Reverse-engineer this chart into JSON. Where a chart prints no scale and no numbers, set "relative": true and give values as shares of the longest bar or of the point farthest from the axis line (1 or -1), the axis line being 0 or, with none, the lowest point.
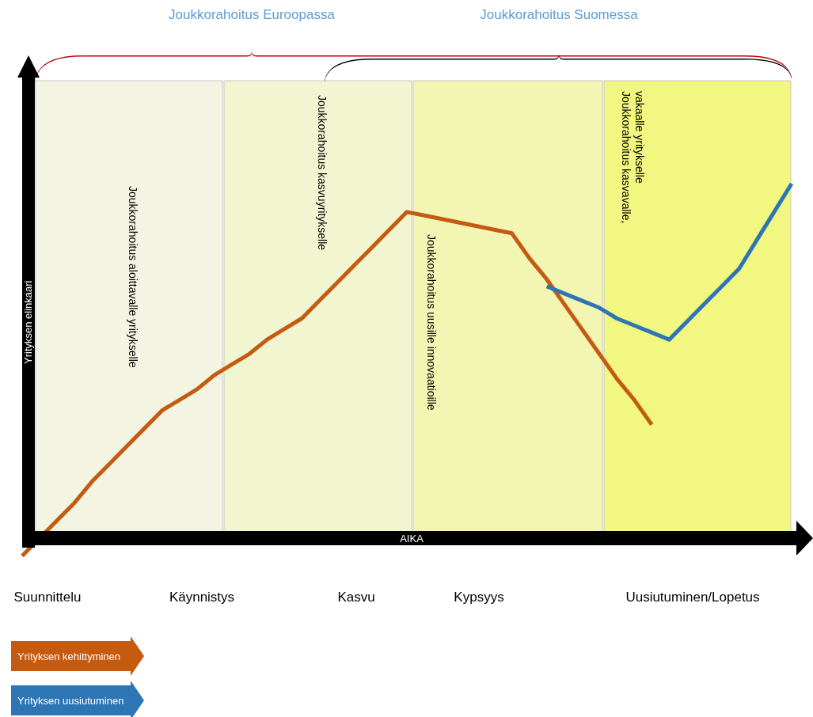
{
  "chart_data": {
    "type": "line",
    "relative": true,
    "xlabel": "AIKA",
    "ylabel": "Yrityksen elinkaari",
    "categories": [
      null,
      null,
      null,
      null,
      null,
      null,
      null,
      null,
      null,
      null,
      null,
      null,
      null,
      null,
      null,
      null,
      null,
      null,
      null,
      null,
      null,
      null,
      null,
      null,
      null,
      null,
      null,
      null,
      null,
      null,
      null,
      null,
      null,
      null,
      null,
      null,
      null,
      null,
      null,
      null,
      null,
      null,
      null,
      null,
      null
    ],
    "series": [
      {
        "name": "Yrityksen kehittyminen",
        "color": "#c55a11",
        "values": [
          -0.05,
          0.0,
          0.05,
          0.1,
          0.16,
          0.21,
          0.26,
          0.31,
          0.36,
          0.39,
          0.42,
          0.46,
          0.49,
          0.52,
          0.56,
          0.59,
          0.62,
          0.67,
          0.72,
          0.77,
          0.82,
          0.87,
          0.92,
          0.91,
          0.9,
          0.89,
          0.88,
          0.87,
          0.86,
          0.79,
          0.73,
          0.66,
          0.59,
          0.52,
          0.45,
          0.39,
          0.32,
          null,
          null,
          null,
          null,
          null,
          null,
          null,
          null
        ]
      },
      {
        "name": "Yrityksen uusiutuminen",
        "color": "#2e75b6",
        "values": [
          null,
          null,
          null,
          null,
          null,
          null,
          null,
          null,
          null,
          null,
          null,
          null,
          null,
          null,
          null,
          null,
          null,
          null,
          null,
          null,
          null,
          null,
          null,
          null,
          null,
          null,
          null,
          null,
          null,
          null,
          0.71,
          0.69,
          0.67,
          0.65,
          0.62,
          0.6,
          0.58,
          0.56,
          0.61,
          0.66,
          0.71,
          0.76,
          0.84,
          0.92,
          1
        ]
      }
    ],
    "annotations": [
      "Joukkorahoitus Euroopassa",
      "Joukkorahoitus Suomessa",
      "Joukkorahoitus aloittavalle yritykselle",
      "Joukkorahoitus kasvuyritykselle",
      "Joukkorahoitus uusille innovaatioille",
      "Joukkorahoitus kasvavalle, vakaalle yritykselle",
      "Suunnittelu",
      "Käynnistys",
      "Kasvu",
      "Kypsyys",
      "Uusiutuminen/Lopetus"
    ],
    "legend": "bottom left",
    "line_style": "solid",
    "marker": "none"
  }
}
